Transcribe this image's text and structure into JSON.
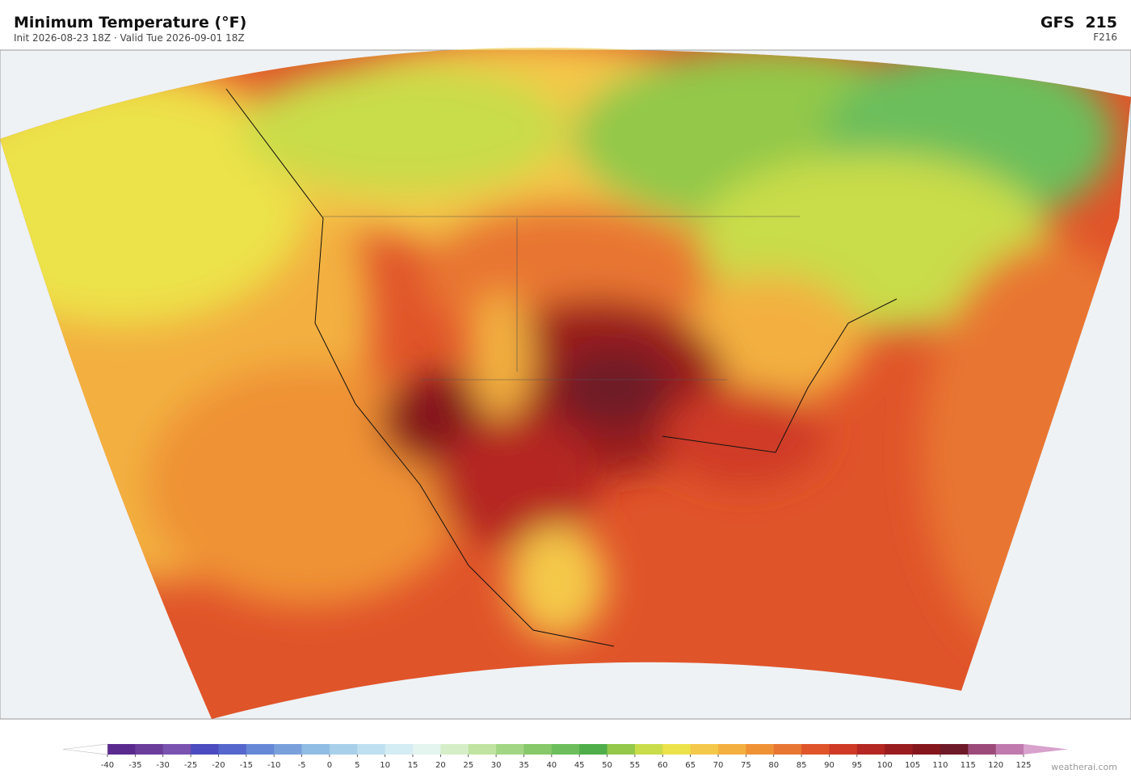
{
  "header": {
    "title": "Minimum Temperature  (°F)",
    "subtitle": "Init 2026-08-23 18Z  ·  Valid Tue 2026-09-01 18Z",
    "model": "GFS  215",
    "forecast_hour": "F216"
  },
  "colorbar": {
    "ticks": [
      -40,
      -35,
      -30,
      -25,
      -20,
      -15,
      -10,
      -5,
      0,
      5,
      10,
      15,
      20,
      25,
      30,
      35,
      40,
      45,
      50,
      55,
      60,
      65,
      70,
      75,
      80,
      85,
      90,
      95,
      100,
      105,
      110,
      115,
      120,
      125
    ],
    "colors": [
      "#5b2a8e",
      "#6a3d9a",
      "#7a52b0",
      "#4c4cc0",
      "#5566cc",
      "#6688d6",
      "#7aa0dc",
      "#90bde3",
      "#a8d0ea",
      "#bfe0f0",
      "#d4ecf3",
      "#e4f4ee",
      "#d6eec8",
      "#bfe3a0",
      "#a3d684",
      "#86c86a",
      "#6cbe5c",
      "#4fae4a",
      "#93c84a",
      "#c9dc4a",
      "#ece24a",
      "#f4c84a",
      "#f3b040",
      "#ef9236",
      "#e87632",
      "#e0542a",
      "#cf3a26",
      "#b52722",
      "#9a1c1e",
      "#85161c",
      "#6e1a28",
      "#9c4a7a",
      "#c07aae"
    ],
    "under_color": "#ffffff",
    "over_color": "#d8a2cc"
  },
  "credit": "weatherai.com"
}
